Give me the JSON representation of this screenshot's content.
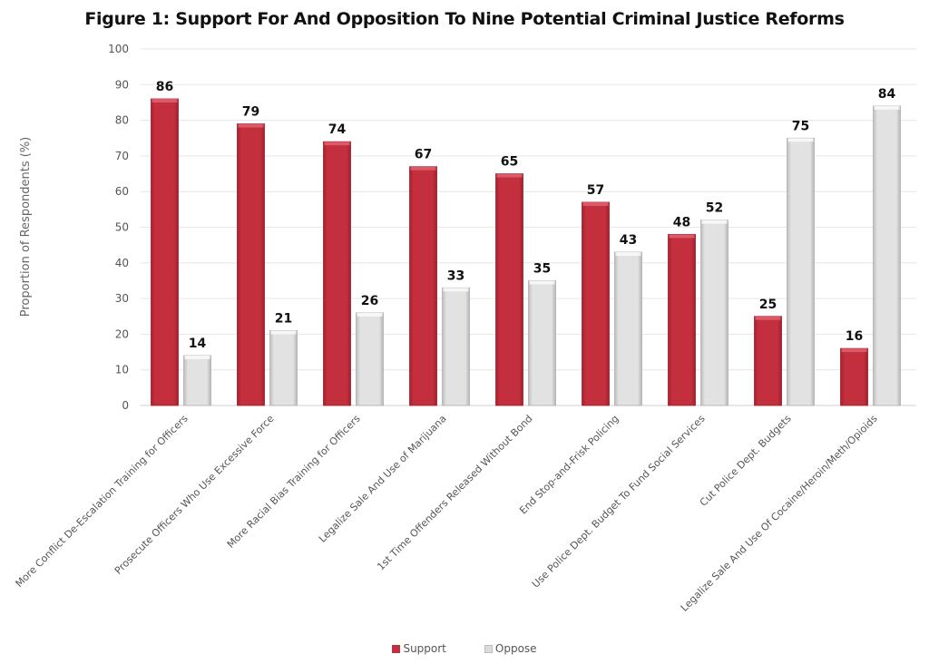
{
  "chart_data": {
    "type": "bar",
    "title": "Figure 1: Support For And Opposition To Nine Potential Criminal Justice Reforms",
    "xlabel": "",
    "ylabel": "Proportion of Respondents  (%)",
    "ylim": [
      0,
      100
    ],
    "yticks": [
      "0",
      "10",
      "20",
      "30",
      "40",
      "50",
      "60",
      "70",
      "80",
      "90",
      "100"
    ],
    "grid": true,
    "legend_position": "bottom",
    "categories": [
      "More Conflict De-Escalation Training for Officers",
      "Prosecute Officers Who Use Excessive Force",
      "More Racial Bias Training for Officers",
      "Legalize Sale And Use of Marijuana",
      "1st Time Offenders Released Without Bond",
      "End Stop-and-Frisk Policing",
      "Use Police Dept. Budget To Fund Social Services",
      "Cut Police Dept. Budgets",
      "Legalize Sale And Use Of Cocaine/Heroin/Meth/Opioids"
    ],
    "series": [
      {
        "name": "Support",
        "color": "#c0303e",
        "values": [
          86,
          79,
          74,
          67,
          65,
          57,
          48,
          25,
          16
        ]
      },
      {
        "name": "Oppose",
        "color": "#dcdcdc",
        "values": [
          14,
          21,
          26,
          33,
          35,
          43,
          52,
          75,
          84
        ]
      }
    ]
  }
}
